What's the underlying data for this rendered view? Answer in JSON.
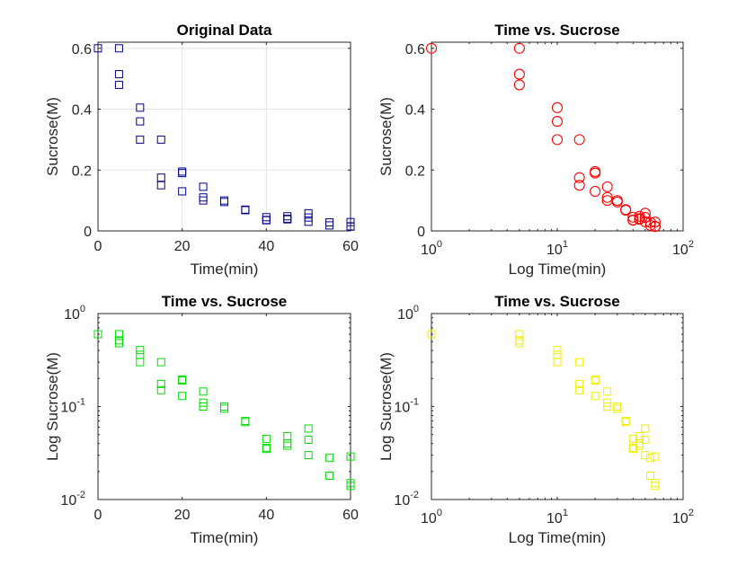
{
  "figure": {
    "background": "#ffffff"
  },
  "chart_data": [
    {
      "type": "scatter",
      "title": "Original Data",
      "xlabel": "Time(min)",
      "ylabel": "Sucrose(M)",
      "xscale": "linear",
      "yscale": "linear",
      "xlim": [
        0,
        60
      ],
      "ylim": [
        0,
        0.62
      ],
      "xticks": [
        0,
        20,
        40,
        60
      ],
      "xtick_labels": [
        "0",
        "20",
        "40",
        "60"
      ],
      "yticks": [
        0,
        0.2,
        0.4,
        0.6
      ],
      "ytick_labels": [
        "0",
        "0.2",
        "0.4",
        "0.6"
      ],
      "grid": true,
      "marker": "square",
      "color": "#00008b",
      "x": [
        0,
        5,
        5,
        5,
        10,
        10,
        10,
        15,
        15,
        15,
        20,
        20,
        20,
        25,
        25,
        25,
        30,
        30,
        35,
        35,
        40,
        40,
        40,
        45,
        45,
        45,
        50,
        50,
        50,
        55,
        55,
        60,
        60,
        60
      ],
      "y": [
        0.6,
        0.6,
        0.515,
        0.48,
        0.405,
        0.36,
        0.3,
        0.3,
        0.175,
        0.15,
        0.195,
        0.19,
        0.13,
        0.145,
        0.11,
        0.1,
        0.1,
        0.095,
        0.07,
        0.068,
        0.045,
        0.036,
        0.035,
        0.048,
        0.04,
        0.038,
        0.058,
        0.044,
        0.03,
        0.028,
        0.018,
        0.029,
        0.015,
        0.014
      ]
    },
    {
      "type": "scatter",
      "title": "Time vs. Sucrose",
      "xlabel": "Log Time(min)",
      "ylabel": "Sucrose(M)",
      "xscale": "log",
      "yscale": "linear",
      "xlim": [
        1,
        100
      ],
      "ylim": [
        0,
        0.62
      ],
      "xticks": [
        1,
        10,
        100
      ],
      "xtick_labels": [
        {
          "base": "10",
          "exp": "0"
        },
        {
          "base": "10",
          "exp": "1"
        },
        {
          "base": "10",
          "exp": "2"
        }
      ],
      "yticks": [
        0,
        0.2,
        0.4,
        0.6
      ],
      "ytick_labels": [
        "0",
        "0.2",
        "0.4",
        "0.6"
      ],
      "grid": false,
      "marker": "circle",
      "color": "#ff0000",
      "x": [
        1,
        5,
        5,
        5,
        10,
        10,
        10,
        15,
        15,
        15,
        20,
        20,
        20,
        25,
        25,
        25,
        30,
        30,
        35,
        35,
        40,
        40,
        40,
        45,
        45,
        45,
        50,
        50,
        50,
        55,
        55,
        60,
        60,
        60
      ],
      "y": [
        0.6,
        0.6,
        0.515,
        0.48,
        0.405,
        0.36,
        0.3,
        0.3,
        0.175,
        0.15,
        0.195,
        0.19,
        0.13,
        0.145,
        0.11,
        0.1,
        0.1,
        0.095,
        0.07,
        0.068,
        0.045,
        0.036,
        0.035,
        0.048,
        0.04,
        0.038,
        0.058,
        0.044,
        0.03,
        0.028,
        0.018,
        0.029,
        0.015,
        0.014
      ]
    },
    {
      "type": "scatter",
      "title": "Time vs. Sucrose",
      "xlabel": "Time(min)",
      "ylabel": "Log Sucrose(M)",
      "xscale": "linear",
      "yscale": "log",
      "xlim": [
        0,
        60
      ],
      "ylim": [
        0.01,
        1
      ],
      "xticks": [
        0,
        20,
        40,
        60
      ],
      "xtick_labels": [
        "0",
        "20",
        "40",
        "60"
      ],
      "yticks": [
        0.01,
        0.1,
        1
      ],
      "ytick_labels": [
        {
          "base": "10",
          "exp": "-2"
        },
        {
          "base": "10",
          "exp": "-1"
        },
        {
          "base": "10",
          "exp": "0"
        }
      ],
      "grid": false,
      "marker": "square",
      "color": "#00dd00",
      "x": [
        0,
        5,
        5,
        5,
        10,
        10,
        10,
        15,
        15,
        15,
        20,
        20,
        20,
        25,
        25,
        25,
        30,
        30,
        35,
        35,
        40,
        40,
        40,
        45,
        45,
        45,
        50,
        50,
        50,
        55,
        55,
        60,
        60,
        60
      ],
      "y": [
        0.6,
        0.6,
        0.515,
        0.48,
        0.405,
        0.36,
        0.3,
        0.3,
        0.175,
        0.15,
        0.195,
        0.19,
        0.13,
        0.145,
        0.11,
        0.1,
        0.1,
        0.095,
        0.07,
        0.068,
        0.045,
        0.036,
        0.035,
        0.048,
        0.04,
        0.038,
        0.058,
        0.044,
        0.03,
        0.028,
        0.018,
        0.029,
        0.015,
        0.014
      ]
    },
    {
      "type": "scatter",
      "title": "Time vs. Sucrose",
      "xlabel": "Log Time(min)",
      "ylabel": "Log Sucrose(M)",
      "xscale": "log",
      "yscale": "log",
      "xlim": [
        1,
        100
      ],
      "ylim": [
        0.01,
        1
      ],
      "xticks": [
        1,
        10,
        100
      ],
      "xtick_labels": [
        {
          "base": "10",
          "exp": "0"
        },
        {
          "base": "10",
          "exp": "1"
        },
        {
          "base": "10",
          "exp": "2"
        }
      ],
      "yticks": [
        0.01,
        0.1,
        1
      ],
      "ytick_labels": [
        {
          "base": "10",
          "exp": "-2"
        },
        {
          "base": "10",
          "exp": "-1"
        },
        {
          "base": "10",
          "exp": "0"
        }
      ],
      "grid": false,
      "marker": "square",
      "color": "#eeee00",
      "x": [
        1,
        5,
        5,
        5,
        10,
        10,
        10,
        15,
        15,
        15,
        20,
        20,
        20,
        25,
        25,
        25,
        30,
        30,
        35,
        35,
        40,
        40,
        40,
        45,
        45,
        45,
        50,
        50,
        50,
        55,
        55,
        60,
        60,
        60
      ],
      "y": [
        0.6,
        0.6,
        0.515,
        0.48,
        0.405,
        0.36,
        0.3,
        0.3,
        0.175,
        0.15,
        0.195,
        0.19,
        0.13,
        0.145,
        0.11,
        0.1,
        0.1,
        0.095,
        0.07,
        0.068,
        0.045,
        0.036,
        0.035,
        0.048,
        0.04,
        0.038,
        0.058,
        0.044,
        0.03,
        0.028,
        0.018,
        0.029,
        0.015,
        0.014
      ]
    }
  ]
}
